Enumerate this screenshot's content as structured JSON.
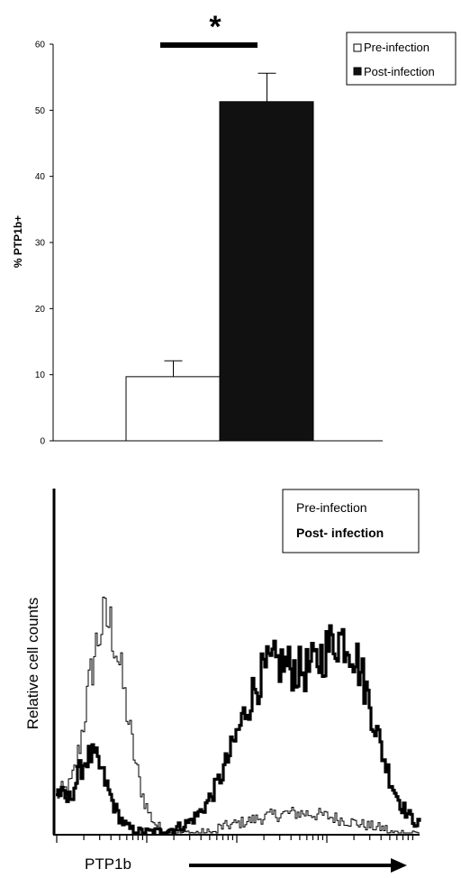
{
  "chart_data": [
    {
      "type": "bar",
      "categories": [
        "Pre-infection",
        "Post-infection"
      ],
      "values": [
        9.7,
        51.3
      ],
      "errors": [
        2.4,
        4.3
      ],
      "ylabel": "% PTP1b+",
      "ylim": [
        0,
        60
      ],
      "yticks": [
        0,
        10,
        20,
        30,
        40,
        50,
        60
      ],
      "legend": [
        "Pre-infection",
        "Post-infection"
      ],
      "legend_position": "top-right",
      "annotation": "*",
      "colors": {
        "pre": "#ffffff",
        "post": "#111111"
      }
    },
    {
      "type": "area",
      "ylabel": "Relative cell counts",
      "xlabel": "PTP1b",
      "legend": [
        "Pre-infection",
        "Post- infection"
      ],
      "legend_position": "top-right",
      "x_scale": "log"
    }
  ]
}
